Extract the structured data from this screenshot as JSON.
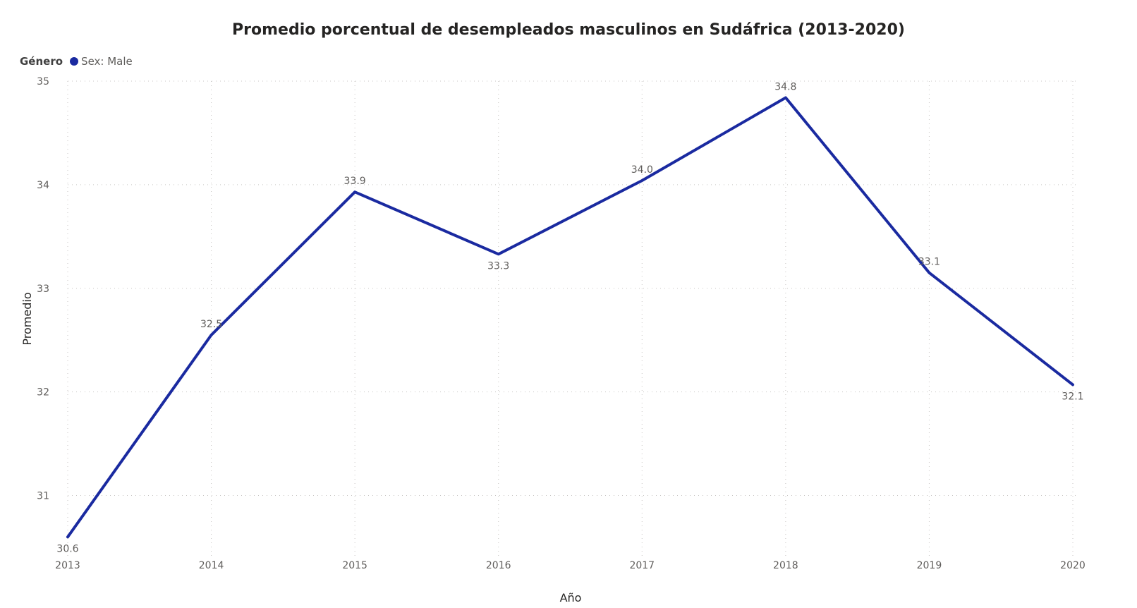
{
  "chart_data": {
    "type": "line",
    "title": "Promedio porcentual de desempleados masculinos en Sudáfrica (2013-2020)",
    "legend_title": "Género",
    "legend_position": "top-left",
    "xlabel": "Año",
    "ylabel": "Promedio",
    "categories": [
      "2013",
      "2014",
      "2015",
      "2016",
      "2017",
      "2018",
      "2019",
      "2020"
    ],
    "yticks": [
      "31",
      "32",
      "33",
      "34",
      "35"
    ],
    "ylim": [
      30.5,
      35
    ],
    "grid": true,
    "series": [
      {
        "name": "Sex: Male",
        "color": "#1a2aa0",
        "values": [
          30.6,
          32.55,
          33.93,
          33.33,
          34.04,
          34.84,
          33.15,
          32.07
        ],
        "labels": [
          "30.6",
          "32.5",
          "33.9",
          "33.3",
          "34.0",
          "34.8",
          "33.1",
          "32.1"
        ]
      }
    ]
  }
}
